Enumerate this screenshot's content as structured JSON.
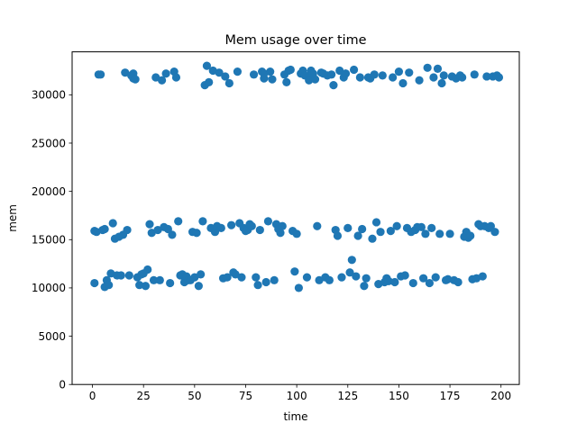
{
  "chart_data": {
    "type": "scatter",
    "title": "Mem usage over time",
    "xlabel": "time",
    "ylabel": "mem",
    "xlim": [
      -9.95,
      208.95
    ],
    "ylim": [
      0,
      34450
    ],
    "xticks": [
      0,
      25,
      50,
      75,
      100,
      125,
      150,
      175,
      200
    ],
    "yticks": [
      0,
      5000,
      10000,
      15000,
      20000,
      25000,
      30000
    ],
    "marker_color": "#1f77b4",
    "series": [
      {
        "name": "mem",
        "points": [
          [
            1,
            10500
          ],
          [
            1,
            15900
          ],
          [
            2,
            15800
          ],
          [
            3,
            32100
          ],
          [
            4,
            32100
          ],
          [
            5,
            16000
          ],
          [
            6,
            10100
          ],
          [
            6,
            16100
          ],
          [
            7,
            10800
          ],
          [
            8,
            10300
          ],
          [
            9,
            11500
          ],
          [
            10,
            16700
          ],
          [
            11,
            15100
          ],
          [
            12,
            11300
          ],
          [
            13,
            15300
          ],
          [
            14,
            11300
          ],
          [
            15,
            15500
          ],
          [
            16,
            32300
          ],
          [
            17,
            16000
          ],
          [
            18,
            11300
          ],
          [
            19,
            32000
          ],
          [
            20,
            32200
          ],
          [
            20,
            31700
          ],
          [
            21,
            31600
          ],
          [
            22,
            11100
          ],
          [
            23,
            10300
          ],
          [
            24,
            11400
          ],
          [
            25,
            11500
          ],
          [
            26,
            10200
          ],
          [
            27,
            11900
          ],
          [
            28,
            16600
          ],
          [
            29,
            15700
          ],
          [
            30,
            10800
          ],
          [
            31,
            31800
          ],
          [
            32,
            16000
          ],
          [
            33,
            10800
          ],
          [
            34,
            31500
          ],
          [
            35,
            16300
          ],
          [
            36,
            32200
          ],
          [
            37,
            16100
          ],
          [
            38,
            10500
          ],
          [
            39,
            15500
          ],
          [
            40,
            32400
          ],
          [
            41,
            31800
          ],
          [
            42,
            16900
          ],
          [
            43,
            11300
          ],
          [
            44,
            11400
          ],
          [
            45,
            10600
          ],
          [
            46,
            11200
          ],
          [
            47,
            10800
          ],
          [
            48,
            10800
          ],
          [
            49,
            15800
          ],
          [
            50,
            11100
          ],
          [
            51,
            15700
          ],
          [
            52,
            10200
          ],
          [
            53,
            11400
          ],
          [
            54,
            16900
          ],
          [
            55,
            31000
          ],
          [
            56,
            33000
          ],
          [
            57,
            31300
          ],
          [
            58,
            16200
          ],
          [
            59,
            32500
          ],
          [
            60,
            15800
          ],
          [
            61,
            16400
          ],
          [
            62,
            32300
          ],
          [
            63,
            16200
          ],
          [
            64,
            11000
          ],
          [
            65,
            31900
          ],
          [
            66,
            11100
          ],
          [
            67,
            31200
          ],
          [
            68,
            16500
          ],
          [
            69,
            11600
          ],
          [
            70,
            11400
          ],
          [
            71,
            32400
          ],
          [
            72,
            16700
          ],
          [
            73,
            11100
          ],
          [
            74,
            16200
          ],
          [
            75,
            15900
          ],
          [
            76,
            16000
          ],
          [
            77,
            16600
          ],
          [
            78,
            16400
          ],
          [
            79,
            32100
          ],
          [
            80,
            11100
          ],
          [
            81,
            10300
          ],
          [
            82,
            16000
          ],
          [
            83,
            32400
          ],
          [
            84,
            32200
          ],
          [
            84,
            31700
          ],
          [
            85,
            10600
          ],
          [
            86,
            16900
          ],
          [
            87,
            32400
          ],
          [
            88,
            31600
          ],
          [
            89,
            10800
          ],
          [
            90,
            16600
          ],
          [
            91,
            16100
          ],
          [
            92,
            15700
          ],
          [
            93,
            16400
          ],
          [
            94,
            32100
          ],
          [
            95,
            31300
          ],
          [
            96,
            32500
          ],
          [
            97,
            32600
          ],
          [
            98,
            15900
          ],
          [
            99,
            11700
          ],
          [
            100,
            15600
          ],
          [
            101,
            10000
          ],
          [
            102,
            32200
          ],
          [
            103,
            32500
          ],
          [
            104,
            32000
          ],
          [
            105,
            11100
          ],
          [
            106,
            31800
          ],
          [
            106,
            31500
          ],
          [
            107,
            32500
          ],
          [
            108,
            32200
          ],
          [
            109,
            31600
          ],
          [
            110,
            16400
          ],
          [
            111,
            10800
          ],
          [
            112,
            32300
          ],
          [
            113,
            32200
          ],
          [
            114,
            11100
          ],
          [
            115,
            32000
          ],
          [
            116,
            10800
          ],
          [
            117,
            32100
          ],
          [
            118,
            31000
          ],
          [
            119,
            16000
          ],
          [
            120,
            15400
          ],
          [
            121,
            32500
          ],
          [
            122,
            11100
          ],
          [
            123,
            31800
          ],
          [
            124,
            32200
          ],
          [
            125,
            16200
          ],
          [
            126,
            11600
          ],
          [
            127,
            12900
          ],
          [
            128,
            32600
          ],
          [
            129,
            11200
          ],
          [
            130,
            15400
          ],
          [
            131,
            31800
          ],
          [
            132,
            16100
          ],
          [
            133,
            10200
          ],
          [
            134,
            11000
          ],
          [
            135,
            31800
          ],
          [
            136,
            31700
          ],
          [
            137,
            15100
          ],
          [
            138,
            32100
          ],
          [
            139,
            16800
          ],
          [
            140,
            10400
          ],
          [
            141,
            15800
          ],
          [
            142,
            32000
          ],
          [
            143,
            10600
          ],
          [
            144,
            11000
          ],
          [
            145,
            10700
          ],
          [
            146,
            15900
          ],
          [
            147,
            31800
          ],
          [
            148,
            10600
          ],
          [
            149,
            16400
          ],
          [
            150,
            32400
          ],
          [
            151,
            11200
          ],
          [
            152,
            31200
          ],
          [
            153,
            11300
          ],
          [
            154,
            16200
          ],
          [
            155,
            32300
          ],
          [
            156,
            15800
          ],
          [
            157,
            10500
          ],
          [
            158,
            16000
          ],
          [
            159,
            16300
          ],
          [
            160,
            31500
          ],
          [
            161,
            16300
          ],
          [
            162,
            11000
          ],
          [
            163,
            15600
          ],
          [
            164,
            32800
          ],
          [
            165,
            10500
          ],
          [
            166,
            16200
          ],
          [
            167,
            31800
          ],
          [
            168,
            11100
          ],
          [
            169,
            32700
          ],
          [
            170,
            15600
          ],
          [
            171,
            31200
          ],
          [
            172,
            32000
          ],
          [
            173,
            10800
          ],
          [
            174,
            10900
          ],
          [
            175,
            15600
          ],
          [
            176,
            31900
          ],
          [
            177,
            10800
          ],
          [
            178,
            31700
          ],
          [
            179,
            10600
          ],
          [
            180,
            32000
          ],
          [
            181,
            31800
          ],
          [
            182,
            15300
          ],
          [
            183,
            15800
          ],
          [
            184,
            15200
          ],
          [
            185,
            15400
          ],
          [
            186,
            10900
          ],
          [
            187,
            32100
          ],
          [
            188,
            11000
          ],
          [
            189,
            16600
          ],
          [
            190,
            16400
          ],
          [
            191,
            11200
          ],
          [
            192,
            16400
          ],
          [
            193,
            31900
          ],
          [
            194,
            16200
          ],
          [
            195,
            16400
          ],
          [
            196,
            31900
          ],
          [
            197,
            15800
          ],
          [
            198,
            32000
          ],
          [
            199,
            31800
          ]
        ]
      }
    ]
  }
}
